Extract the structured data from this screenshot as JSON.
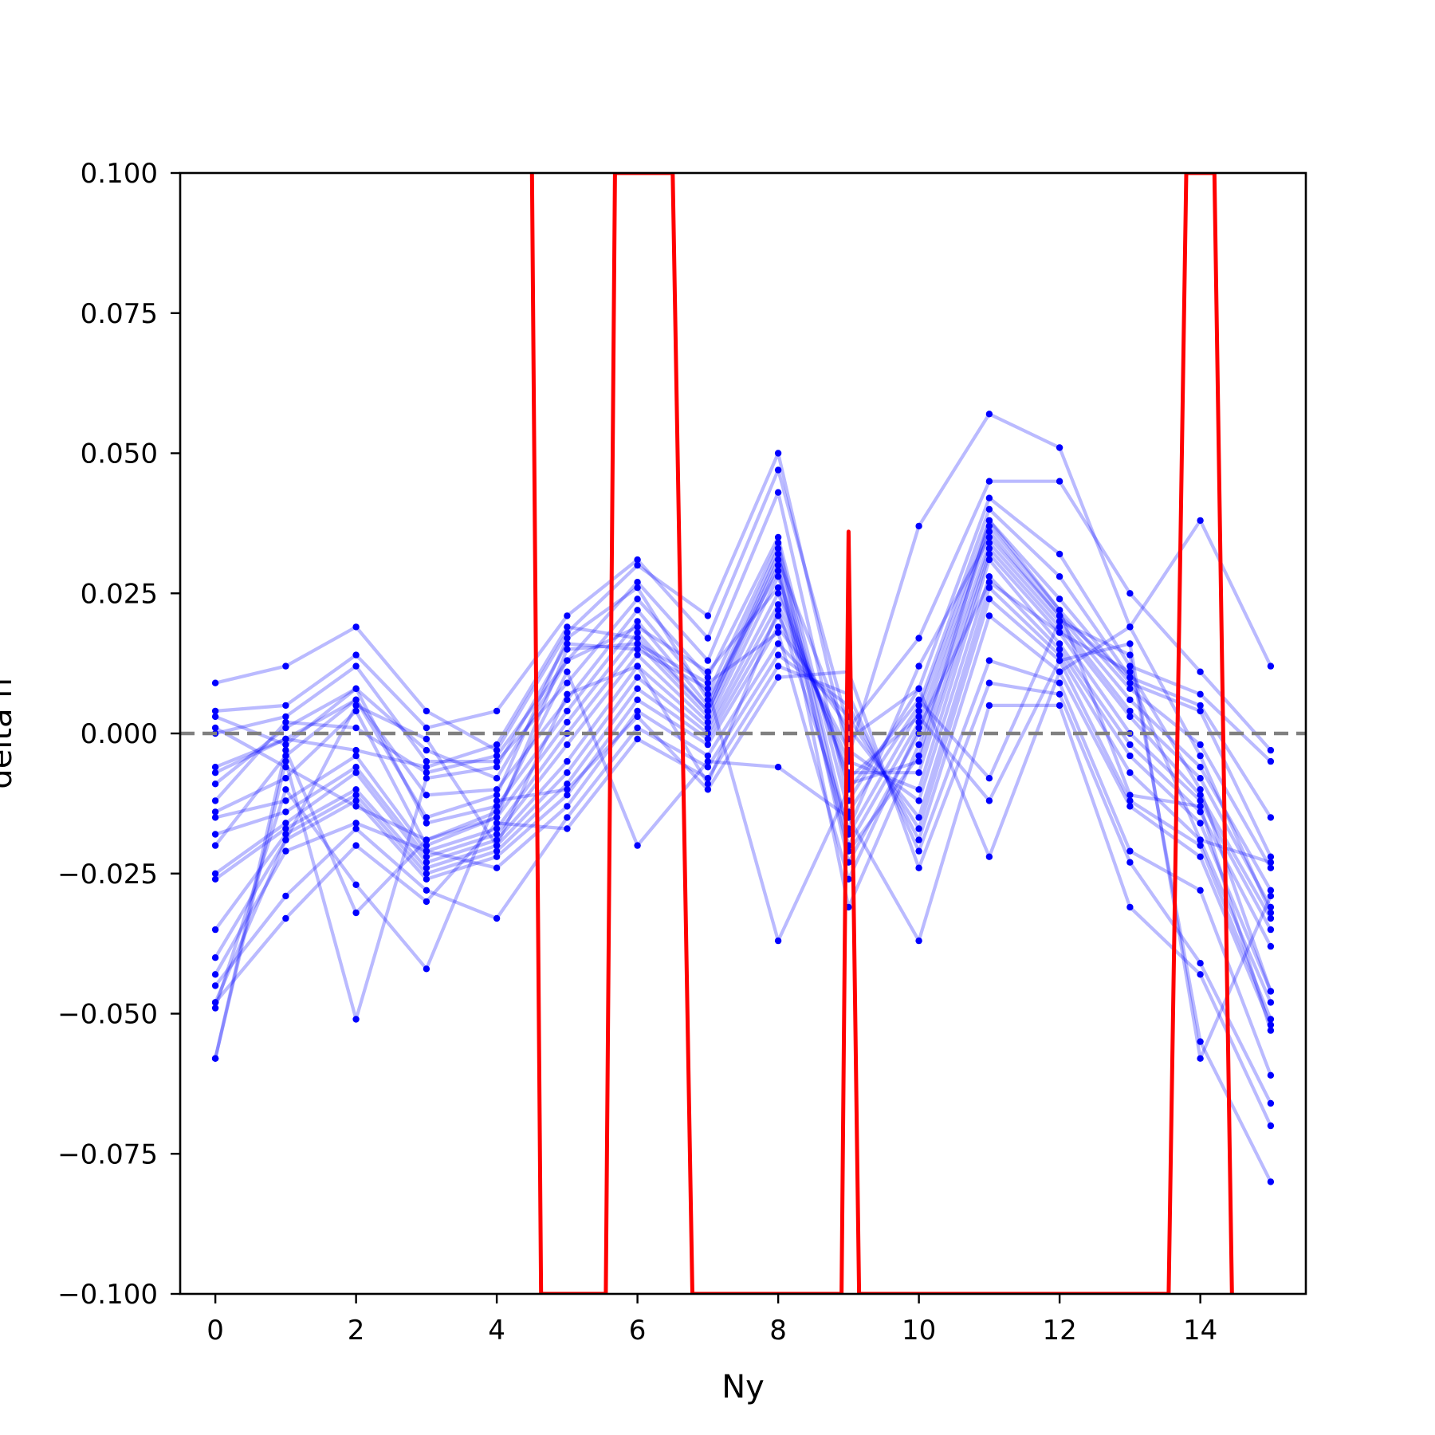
{
  "chart_data": {
    "type": "line",
    "title": "",
    "xlabel": "Ny",
    "ylabel": "delta n",
    "xlim": [
      -0.5,
      15.5
    ],
    "ylim": [
      -0.1,
      0.1
    ],
    "xticks": [
      0,
      2,
      4,
      6,
      8,
      10,
      12,
      14
    ],
    "xtick_labels": [
      "0",
      "2",
      "4",
      "6",
      "8",
      "10",
      "12",
      "14"
    ],
    "yticks": [
      -0.1,
      -0.075,
      -0.05,
      -0.025,
      0.0,
      0.025,
      0.05,
      0.075,
      0.1
    ],
    "ytick_labels": [
      "−0.100",
      "−0.075",
      "−0.050",
      "−0.025",
      "0.000",
      "0.025",
      "0.050",
      "0.075",
      "0.100"
    ],
    "grid": false,
    "legend": "none",
    "reference_line": {
      "y": 0.0,
      "style": "dashed",
      "color": "#808080"
    },
    "x": [
      0,
      1,
      2,
      3,
      4,
      5,
      6,
      7,
      8,
      9,
      10,
      11,
      12,
      13,
      14,
      15
    ],
    "series_color": "#0000ff",
    "series_alpha": 0.27,
    "series": [
      {
        "values": [
          0.009,
          0.012,
          0.019,
          0.004,
          -0.003,
          0.018,
          0.03,
          0.021,
          0.05,
          -0.004,
          0.037,
          0.057,
          0.051,
          0.019,
          0.038,
          0.012
        ]
      },
      {
        "values": [
          0.004,
          0.005,
          0.014,
          0.001,
          0.004,
          0.021,
          0.031,
          0.017,
          0.047,
          0.001,
          0.017,
          0.045,
          0.045,
          0.025,
          0.011,
          -0.003
        ]
      },
      {
        "values": [
          0.003,
          -0.002,
          0.008,
          -0.003,
          -0.008,
          0.013,
          0.027,
          0.013,
          0.043,
          -0.012,
          0.008,
          0.042,
          0.032,
          0.012,
          0.007,
          -0.005
        ]
      },
      {
        "values": [
          0.0,
          0.003,
          0.012,
          -0.005,
          -0.005,
          0.009,
          0.024,
          0.01,
          0.035,
          -0.014,
          0.005,
          0.04,
          0.028,
          0.01,
          0.005,
          -0.015
        ]
      },
      {
        "values": [
          -0.007,
          -0.001,
          0.006,
          -0.011,
          -0.01,
          0.006,
          0.022,
          0.007,
          0.034,
          -0.018,
          0.004,
          0.038,
          0.024,
          0.009,
          0.004,
          -0.022
        ]
      },
      {
        "values": [
          -0.009,
          0.001,
          0.008,
          -0.016,
          -0.013,
          0.004,
          0.02,
          0.005,
          0.033,
          -0.02,
          0.002,
          0.037,
          0.022,
          0.008,
          -0.002,
          -0.024
        ]
      },
      {
        "values": [
          -0.014,
          -0.008,
          0.004,
          -0.02,
          -0.015,
          0.002,
          0.018,
          0.004,
          0.032,
          -0.023,
          0.0,
          0.036,
          0.021,
          0.006,
          -0.006,
          -0.028
        ]
      },
      {
        "values": [
          -0.015,
          -0.012,
          -0.004,
          -0.021,
          -0.017,
          0.0,
          0.016,
          0.003,
          0.03,
          -0.031,
          -0.002,
          0.034,
          0.02,
          0.004,
          -0.008,
          -0.031
        ]
      },
      {
        "values": [
          -0.018,
          -0.014,
          -0.006,
          -0.022,
          -0.018,
          -0.002,
          0.014,
          0.002,
          0.028,
          -0.009,
          -0.005,
          0.033,
          0.019,
          0.003,
          -0.011,
          -0.033
        ]
      },
      {
        "values": [
          -0.025,
          -0.016,
          -0.007,
          -0.023,
          -0.019,
          -0.005,
          0.012,
          0.001,
          0.025,
          -0.007,
          -0.007,
          0.032,
          0.018,
          0.0,
          -0.012,
          -0.035
        ]
      },
      {
        "values": [
          -0.026,
          -0.017,
          -0.01,
          -0.024,
          -0.02,
          -0.007,
          0.01,
          0.0,
          0.023,
          -0.005,
          -0.01,
          0.031,
          0.016,
          -0.002,
          -0.014,
          -0.038
        ]
      },
      {
        "values": [
          -0.035,
          -0.018,
          -0.011,
          -0.025,
          -0.021,
          -0.009,
          0.008,
          -0.001,
          0.021,
          -0.003,
          -0.012,
          0.028,
          0.015,
          -0.004,
          -0.016,
          -0.046
        ]
      },
      {
        "values": [
          -0.04,
          -0.019,
          -0.012,
          -0.026,
          -0.022,
          -0.011,
          0.006,
          -0.002,
          0.019,
          0.001,
          -0.015,
          0.026,
          0.014,
          -0.007,
          -0.019,
          -0.048
        ]
      },
      {
        "values": [
          -0.043,
          -0.021,
          -0.016,
          -0.021,
          -0.024,
          -0.013,
          0.004,
          -0.004,
          0.016,
          0.003,
          -0.017,
          0.024,
          0.013,
          -0.012,
          -0.02,
          -0.051
        ]
      },
      {
        "values": [
          -0.045,
          -0.029,
          -0.017,
          -0.028,
          -0.033,
          -0.015,
          0.001,
          -0.006,
          0.014,
          0.005,
          -0.019,
          0.021,
          0.011,
          -0.013,
          -0.022,
          -0.052
        ]
      },
      {
        "values": [
          -0.048,
          -0.033,
          -0.02,
          -0.03,
          -0.016,
          -0.017,
          -0.001,
          -0.008,
          0.012,
          0.007,
          -0.021,
          0.013,
          0.009,
          -0.021,
          -0.028,
          -0.061
        ]
      },
      {
        "values": [
          -0.049,
          -0.01,
          -0.027,
          -0.042,
          -0.012,
          -0.01,
          0.003,
          -0.01,
          0.01,
          0.011,
          -0.024,
          0.009,
          0.007,
          -0.023,
          -0.041,
          -0.066
        ]
      },
      {
        "values": [
          -0.058,
          -0.003,
          -0.032,
          -0.019,
          -0.014,
          0.011,
          -0.02,
          -0.005,
          -0.006,
          -0.015,
          -0.037,
          0.005,
          0.005,
          -0.031,
          -0.043,
          -0.07
        ]
      },
      {
        "values": [
          -0.058,
          -0.005,
          -0.051,
          -0.008,
          -0.006,
          0.016,
          0.015,
          0.008,
          -0.037,
          -0.01,
          0.006,
          -0.008,
          0.02,
          0.014,
          -0.055,
          -0.08
        ]
      },
      {
        "values": [
          -0.012,
          0.002,
          0.001,
          -0.007,
          -0.004,
          0.013,
          0.019,
          0.011,
          0.026,
          -0.008,
          0.003,
          -0.012,
          0.013,
          0.016,
          -0.058,
          -0.029
        ]
      },
      {
        "values": [
          -0.006,
          -0.001,
          -0.003,
          -0.006,
          -0.002,
          0.019,
          0.017,
          0.004,
          0.031,
          -0.001,
          0.008,
          -0.022,
          0.011,
          0.019,
          -0.004,
          -0.032
        ]
      },
      {
        "values": [
          -0.048,
          -0.019,
          0.005,
          -0.001,
          -0.02,
          0.007,
          0.012,
          -0.009,
          0.022,
          -0.017,
          0.012,
          0.035,
          0.021,
          0.01,
          -0.019,
          -0.023
        ]
      },
      {
        "values": [
          -0.02,
          -0.004,
          0.006,
          -0.015,
          -0.011,
          0.017,
          0.026,
          0.006,
          0.029,
          -0.021,
          -0.004,
          0.038,
          0.022,
          -0.011,
          -0.013,
          -0.053
        ]
      },
      {
        "values": [
          0.001,
          -0.006,
          -0.013,
          -0.019,
          -0.015,
          0.015,
          0.016,
          0.009,
          0.018,
          -0.026,
          0.001,
          0.027,
          0.018,
          0.011,
          -0.01,
          -0.046
        ]
      }
    ],
    "red_line": {
      "name": "",
      "color": "#ff0000",
      "points": [
        {
          "x": 4.5,
          "y": 0.1
        },
        {
          "x": 4.63,
          "y": -0.1
        },
        {
          "x": 5.55,
          "y": -0.1
        },
        {
          "x": 5.68,
          "y": 0.1
        },
        {
          "x": 6.5,
          "y": 0.1
        },
        {
          "x": 6.78,
          "y": -0.1
        },
        {
          "x": 8.9,
          "y": -0.1
        },
        {
          "x": 9.0,
          "y": 0.036
        },
        {
          "x": 9.15,
          "y": -0.1
        },
        {
          "x": 13.55,
          "y": -0.1
        },
        {
          "x": 13.8,
          "y": 0.1
        },
        {
          "x": 14.2,
          "y": 0.1
        },
        {
          "x": 14.45,
          "y": -0.1
        }
      ]
    }
  }
}
